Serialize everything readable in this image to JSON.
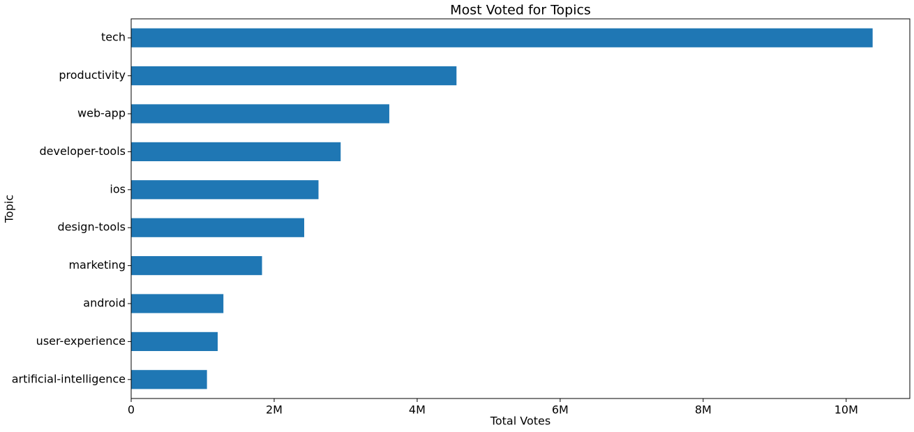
{
  "chart_data": {
    "type": "barh",
    "title": "Most Voted for Topics",
    "xlabel": "Total Votes",
    "ylabel": "Topic",
    "categories": [
      "tech",
      "productivity",
      "web-app",
      "developer-tools",
      "ios",
      "design-tools",
      "marketing",
      "android",
      "user-experience",
      "artificial-intelligence"
    ],
    "values": [
      10370000,
      4550000,
      3610000,
      2930000,
      2620000,
      2420000,
      1830000,
      1290000,
      1210000,
      1060000
    ],
    "color": "#1f77b4",
    "xlim": [
      0,
      10890000
    ],
    "xticks": [
      0,
      {
        "value": 2000000,
        "label": "2M"
      },
      {
        "value": 4000000,
        "label": "4M"
      },
      {
        "value": 6000000,
        "label": "6M"
      },
      {
        "value": 8000000,
        "label": "8M"
      },
      {
        "value": 10000000,
        "label": "10M"
      }
    ],
    "grid": false
  }
}
